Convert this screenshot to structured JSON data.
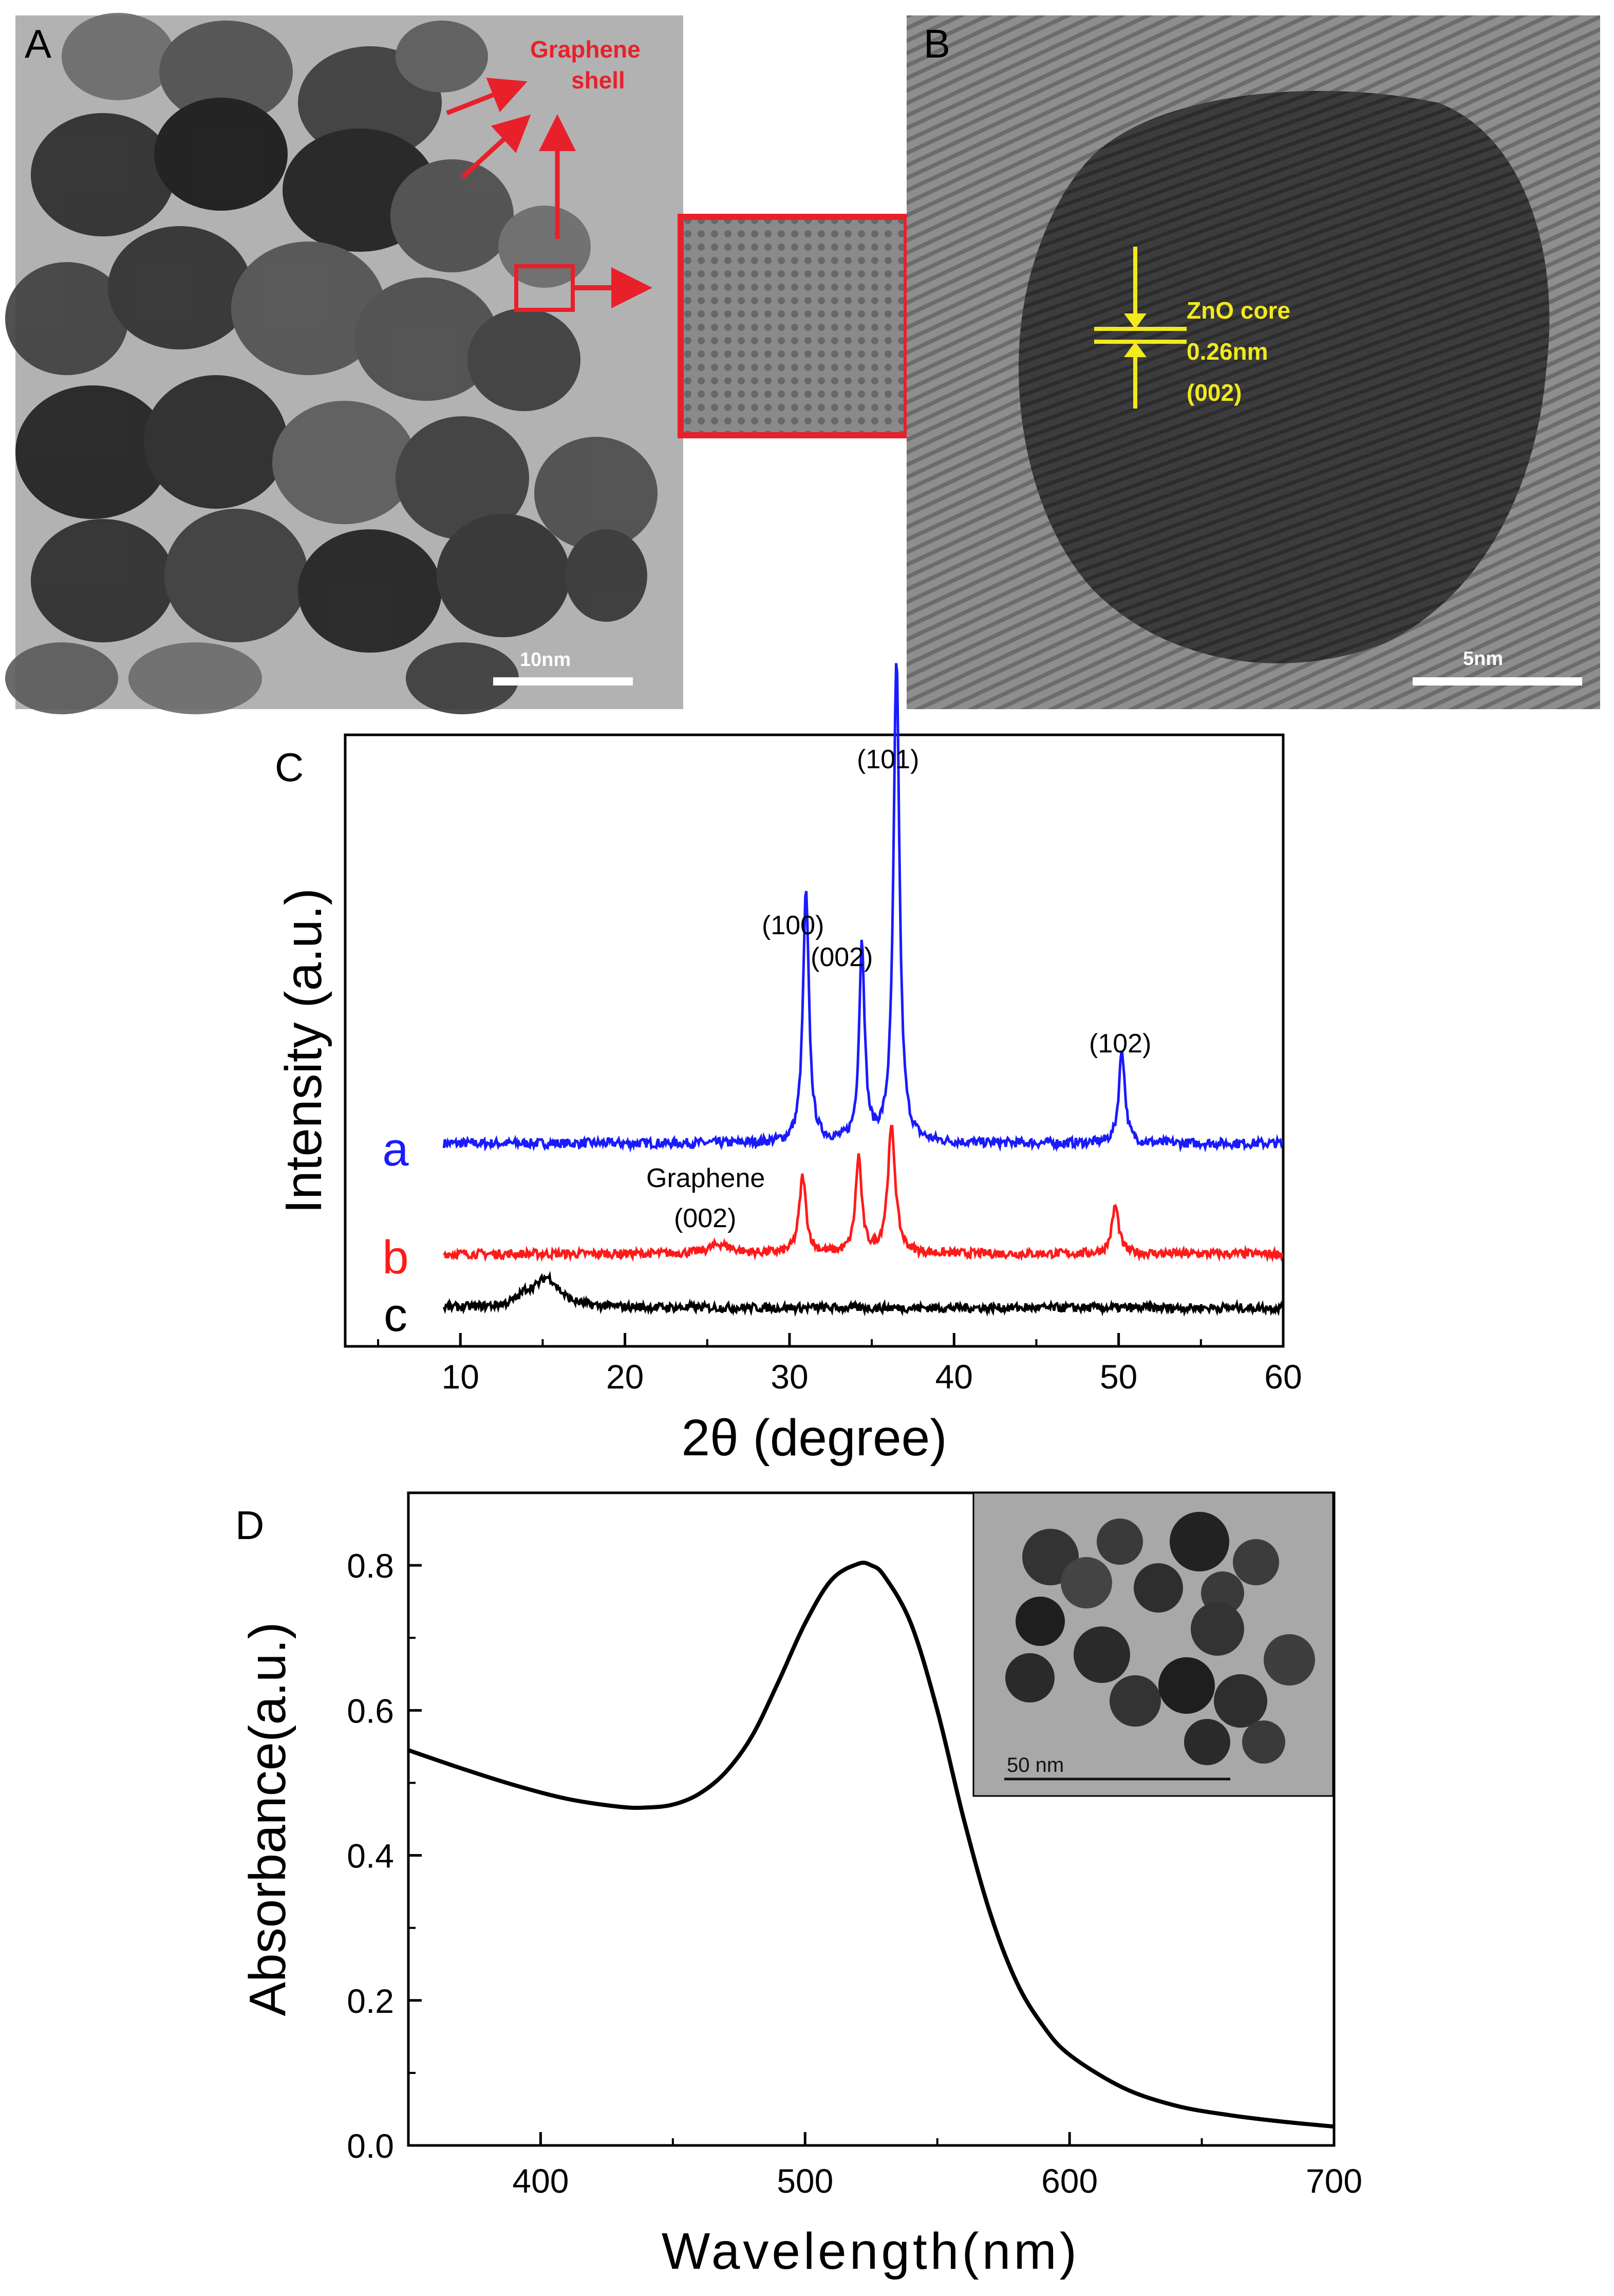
{
  "panels": {
    "A": {
      "letter": "A",
      "label_line1": "Graphene",
      "label_line2": "shell",
      "scale": "10nm"
    },
    "B": {
      "letter": "B",
      "label_line1": "ZnO core",
      "label_line2": "0.26nm",
      "label_line3": "(002)",
      "scale": "5nm"
    },
    "C": {
      "letter": "C"
    },
    "D": {
      "letter": "D",
      "inset_scale": "50 nm"
    }
  },
  "colors": {
    "blue": "#1a1aff",
    "red": "#ff1a1a",
    "black": "#000000",
    "tem_red": "#e8202a",
    "tem_yellow": "#f2ea1d"
  },
  "chart_data": [
    {
      "type": "line",
      "panel": "C",
      "title": "",
      "xlabel": "2θ (degree)",
      "ylabel": "Intensity (a.u.)",
      "xlim": [
        3,
        60
      ],
      "xticks": [
        10,
        20,
        30,
        40,
        50,
        60
      ],
      "series": [
        {
          "name": "a",
          "color": "#1a1aff",
          "baseline": 0.0,
          "peaks": [
            [
              31.0,
              0.48,
              0.22
            ],
            [
              34.4,
              0.38,
              0.2
            ],
            [
              36.5,
              0.92,
              0.22
            ],
            [
              50.2,
              0.18,
              0.22
            ]
          ]
        },
        {
          "name": "b",
          "color": "#ff1a1a",
          "baseline": -0.28,
          "peaks": [
            [
              25.8,
              0.02,
              0.8
            ],
            [
              30.8,
              0.16,
              0.25
            ],
            [
              34.2,
              0.2,
              0.22
            ],
            [
              36.2,
              0.26,
              0.28
            ],
            [
              49.8,
              0.1,
              0.25
            ]
          ]
        },
        {
          "name": "c",
          "color": "#000000",
          "baseline": -0.42,
          "peaks": [
            [
              14.0,
              0.02,
              0.6
            ],
            [
              15.3,
              0.06,
              0.9
            ]
          ]
        }
      ],
      "annotations": [
        "(100)",
        "(002)",
        "(101)",
        "(102)",
        "Graphene",
        "(002)"
      ]
    },
    {
      "type": "line",
      "panel": "D",
      "title": "",
      "xlabel": "Wavelength(nm)",
      "ylabel": "Absorbance(a.u.)",
      "xlim": [
        350,
        700
      ],
      "ylim": [
        0,
        0.9
      ],
      "xticks": [
        400,
        500,
        600,
        700
      ],
      "yticks": [
        "0.0",
        "0.2",
        "0.4",
        "0.6",
        "0.8"
      ],
      "series": [
        {
          "name": "",
          "color": "#000000",
          "x": [
            350,
            370,
            390,
            410,
            430,
            440,
            450,
            460,
            470,
            480,
            490,
            500,
            510,
            520,
            525,
            530,
            540,
            550,
            560,
            570,
            580,
            590,
            600,
            620,
            640,
            660,
            680,
            700
          ],
          "y": [
            0.545,
            0.52,
            0.497,
            0.478,
            0.467,
            0.466,
            0.47,
            0.485,
            0.515,
            0.565,
            0.64,
            0.72,
            0.78,
            0.802,
            0.8,
            0.785,
            0.72,
            0.6,
            0.45,
            0.32,
            0.225,
            0.165,
            0.125,
            0.08,
            0.055,
            0.042,
            0.033,
            0.026
          ]
        }
      ]
    }
  ]
}
